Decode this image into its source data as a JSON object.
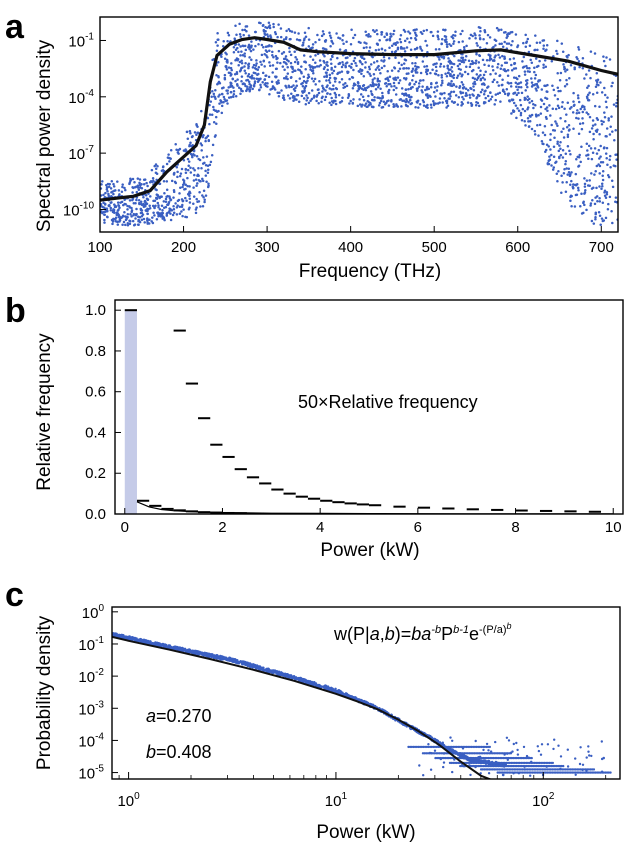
{
  "panels": {
    "a": {
      "label": "a"
    },
    "b": {
      "label": "b"
    },
    "c": {
      "label": "c"
    }
  },
  "chart_data": [
    {
      "type": "scatter",
      "panel": "a",
      "xlabel": "Frequency (THz)",
      "ylabel": "Spectral power density",
      "xlim": [
        100,
        720
      ],
      "ylim_exponent": [
        -12,
        0
      ],
      "yscale": "log",
      "x_ticks": [
        "100",
        "200",
        "300",
        "400",
        "500",
        "600",
        "700"
      ],
      "y_ticks": [
        {
          "base": "10",
          "exp": "-1",
          "value_exp": -1
        },
        {
          "base": "10",
          "exp": "-4",
          "value_exp": -4
        },
        {
          "base": "10",
          "exp": "-7",
          "value_exp": -7
        },
        {
          "base": "10",
          "exp": "-10",
          "value_exp": -10
        }
      ],
      "series": [
        {
          "role": "mean",
          "color": "#111111",
          "x": [
            100,
            120,
            140,
            160,
            180,
            200,
            215,
            225,
            232,
            240,
            255,
            270,
            285,
            300,
            320,
            340,
            360,
            400,
            450,
            500,
            550,
            580,
            620,
            660,
            700,
            720
          ],
          "y_exp": [
            -9.5,
            -9.4,
            -9.3,
            -9.0,
            -8.0,
            -7.2,
            -6.6,
            -5.5,
            -3.2,
            -1.8,
            -1.2,
            -0.95,
            -0.85,
            -0.95,
            -1.1,
            -1.5,
            -1.6,
            -1.7,
            -1.75,
            -1.75,
            -1.55,
            -1.5,
            -1.8,
            -2.1,
            -2.6,
            -2.8
          ]
        },
        {
          "role": "single-shot spectra",
          "color": "#3a5fc2",
          "x": [
            100,
            120,
            140,
            160,
            180,
            200,
            215,
            225,
            232,
            240,
            255,
            270,
            285,
            300,
            320,
            340,
            360,
            400,
            450,
            500,
            550,
            580,
            620,
            650,
            680,
            700,
            720
          ],
          "y_exp_top": [
            -8.4,
            -8.5,
            -8.3,
            -8.0,
            -6.8,
            -6.0,
            -5.2,
            -4.2,
            -2.0,
            -0.6,
            -0.3,
            0.0,
            0.0,
            0.0,
            -0.1,
            -0.3,
            -0.3,
            -0.4,
            -0.4,
            -0.4,
            -0.3,
            -0.2,
            -0.5,
            -0.9,
            -1.3,
            -1.7,
            -2.0
          ],
          "y_exp_bot": [
            -10.8,
            -10.8,
            -10.9,
            -10.8,
            -10.6,
            -10.5,
            -10.2,
            -9.8,
            -8.5,
            -5.5,
            -4.2,
            -3.8,
            -3.7,
            -3.9,
            -4.2,
            -4.4,
            -4.4,
            -4.5,
            -4.6,
            -4.6,
            -4.5,
            -4.4,
            -6.0,
            -9.0,
            -10.8,
            -10.9,
            -11.0
          ]
        }
      ]
    },
    {
      "type": "bar",
      "panel": "b",
      "xlabel": "Power (kW)",
      "ylabel": "Relative frequency",
      "xlim": [
        -0.2,
        10.2
      ],
      "ylim": [
        0,
        1.05
      ],
      "x_ticks": [
        "0",
        "2",
        "4",
        "6",
        "8",
        "10"
      ],
      "x_tick_values": [
        0,
        2,
        4,
        6,
        8,
        10
      ],
      "y_ticks": [
        "0.0",
        "0.2",
        "0.4",
        "0.6",
        "0.8",
        "1.0"
      ],
      "y_tick_values": [
        0.0,
        0.2,
        0.4,
        0.6,
        0.8,
        1.0
      ],
      "annotation": "50×Relative frequency",
      "bin_width": 0.25,
      "bars": {
        "name": "Relative frequency",
        "color": "#c5cbe8",
        "bin_start": [
          0.0
        ],
        "values": [
          1.0
        ]
      },
      "bins_x1": {
        "name": "Relative frequency",
        "x": [
          0.25,
          0.5,
          0.75,
          1.0,
          1.25,
          1.5,
          1.75,
          2.0,
          2.25
        ],
        "values": [
          0.065,
          0.04,
          0.025,
          0.018,
          0.013,
          0.009,
          0.007,
          0.005,
          0.004
        ]
      },
      "bins_x50": {
        "name": "50×Relative frequency",
        "x": [
          0.0,
          1.0,
          1.25,
          1.5,
          1.75,
          2.0,
          2.25,
          2.5,
          2.75,
          3.0,
          3.25,
          3.5,
          3.75,
          4.0,
          4.25,
          4.5,
          4.75,
          5.0,
          5.5,
          6.0,
          6.5,
          7.0,
          7.5,
          8.0,
          8.5,
          9.0,
          9.5
        ],
        "values": [
          1.0,
          0.9,
          0.64,
          0.47,
          0.34,
          0.28,
          0.22,
          0.18,
          0.15,
          0.12,
          0.1,
          0.085,
          0.075,
          0.065,
          0.058,
          0.052,
          0.047,
          0.043,
          0.036,
          0.031,
          0.027,
          0.023,
          0.02,
          0.017,
          0.015,
          0.013,
          0.011
        ]
      },
      "fit_curve": {
        "name": "fit",
        "x": [
          0.25,
          0.5,
          0.75,
          1.0,
          1.5,
          2.0,
          3.0,
          4.0,
          5.0,
          6.0,
          7.0,
          8.0,
          9.0,
          10.0
        ],
        "values": [
          0.06,
          0.035,
          0.022,
          0.016,
          0.01,
          0.007,
          0.004,
          0.003,
          0.002,
          0.0015,
          0.001,
          0.001,
          0.0008,
          0.0006
        ]
      }
    },
    {
      "type": "scatter",
      "panel": "c",
      "xlabel": "Power (kW)",
      "ylabel": "Probability density",
      "xscale": "log",
      "yscale": "log",
      "xlim_exponent": [
        -0.08,
        2.37
      ],
      "ylim_exponent": [
        -5.2,
        0.15
      ],
      "x_ticks": [
        {
          "base": "10",
          "exp": "0",
          "value_exp": 0
        },
        {
          "base": "10",
          "exp": "1",
          "value_exp": 1
        },
        {
          "base": "10",
          "exp": "2",
          "value_exp": 2
        }
      ],
      "y_ticks": [
        {
          "base": "10",
          "exp": "0",
          "value_exp": 0
        },
        {
          "base": "10",
          "exp": "-1",
          "value_exp": -1
        },
        {
          "base": "10",
          "exp": "-2",
          "value_exp": -2
        },
        {
          "base": "10",
          "exp": "-3",
          "value_exp": -3
        },
        {
          "base": "10",
          "exp": "-4",
          "value_exp": -4
        },
        {
          "base": "10",
          "exp": "-5",
          "value_exp": -5
        }
      ],
      "formula": {
        "lhs": "w(P|",
        "a": "a",
        "comma": ",",
        "b": "b",
        "rhs": ")=",
        "b2": "b",
        "a2": "a",
        "minus_b": "-b",
        "P": "P",
        "b_minus_1": "b-1",
        "e": "e",
        "e_exp": "-(P/a)",
        "e_exp_b": "b"
      },
      "params": [
        {
          "name": "a",
          "value": "=0.270"
        },
        {
          "name": "b",
          "value": "=0.408"
        }
      ],
      "series": [
        {
          "name": "data",
          "color": "#3a5fc2",
          "x_exp": [
            -0.08,
            0.2,
            0.5,
            0.8,
            1.0,
            1.2,
            1.35,
            1.45,
            1.55,
            1.65,
            1.8,
            2.0,
            2.2,
            2.3
          ],
          "y_exp": [
            -0.7,
            -1.1,
            -1.5,
            -2.05,
            -2.45,
            -3.0,
            -3.55,
            -3.9,
            -4.3,
            -4.6,
            -4.75,
            -4.95,
            -5.0,
            -5.0
          ]
        },
        {
          "name": "fit",
          "color": "#111111",
          "x_exp": [
            -0.08,
            0.0,
            0.2,
            0.4,
            0.6,
            0.8,
            1.0,
            1.1,
            1.2,
            1.3,
            1.4,
            1.5,
            1.6,
            1.7,
            1.76
          ],
          "y_exp": [
            -0.78,
            -0.9,
            -1.18,
            -1.48,
            -1.8,
            -2.15,
            -2.55,
            -2.78,
            -3.03,
            -3.35,
            -3.72,
            -4.15,
            -4.65,
            -5.1,
            -5.25
          ]
        }
      ]
    }
  ]
}
